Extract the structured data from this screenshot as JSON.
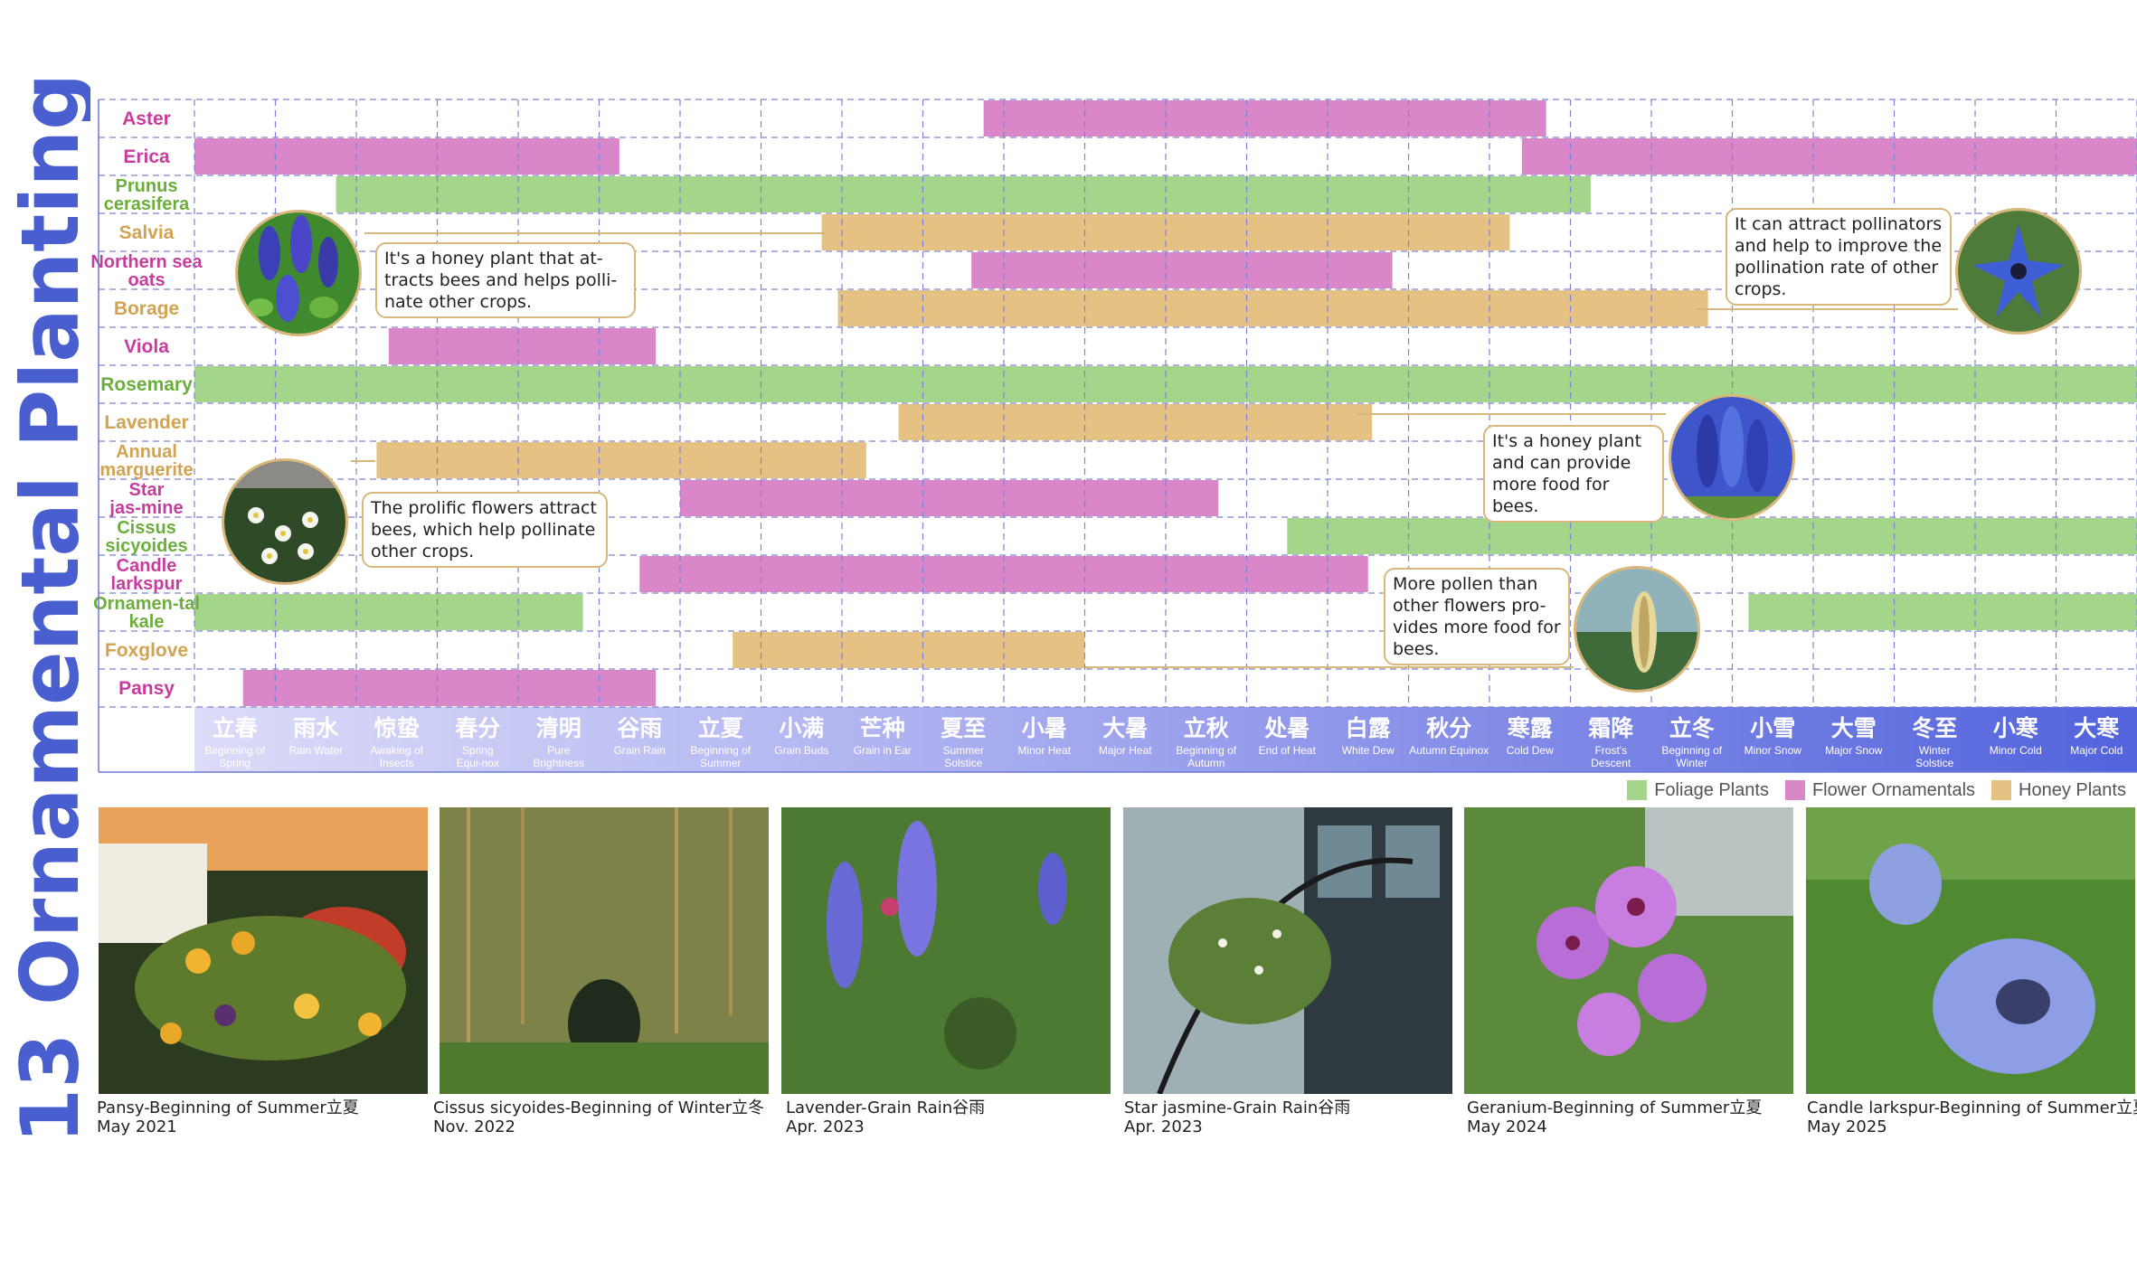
{
  "side_title": "13 Ornamental Planting",
  "chart_data": {
    "type": "gantt",
    "x_axis": {
      "categories_cn": [
        "立春",
        "雨水",
        "惊蛰",
        "春分",
        "清明",
        "谷雨",
        "立夏",
        "小满",
        "芒种",
        "夏至",
        "小暑",
        "大暑",
        "立秋",
        "处暑",
        "白露",
        "秋分",
        "寒露",
        "霜降",
        "立冬",
        "小雪",
        "大雪",
        "冬至",
        "小寒",
        "大寒"
      ],
      "categories_en": [
        "Beginning of Spring",
        "Rain Water",
        "Awaking of Insects",
        "Spring Equi-nox",
        "Pure Brightness",
        "Grain Rain",
        "Beginning of Summer",
        "Grain Buds",
        "Grain in Ear",
        "Summer Solstice",
        "Minor Heat",
        "Major Heat",
        "Beginning of Autumn",
        "End of Heat",
        "White Dew",
        "Autumn Equinox",
        "Cold Dew",
        "Frost's Descent",
        "Beginning of Winter",
        "Minor Snow",
        "Major Snow",
        "Winter Solstice",
        "Minor Cold",
        "Major Cold"
      ]
    },
    "categories": {
      "foliage": {
        "label": "Foliage Plants",
        "color": "#a3d58a",
        "text_color": "#6cae3b"
      },
      "flower": {
        "label": "Flower Ornamentals",
        "color": "#d987c9",
        "text_color": "#c63d9e"
      },
      "honey": {
        "label": "Honey Plants",
        "color": "#e5c283",
        "text_color": "#d1a352"
      }
    },
    "rows": [
      {
        "label": "Aster",
        "type": "flower",
        "segments": [
          [
            9.75,
            16.7
          ]
        ]
      },
      {
        "label": "Erica",
        "type": "flower",
        "segments": [
          [
            0,
            5.25
          ],
          [
            16.4,
            24
          ]
        ]
      },
      {
        "label": "Prunus cerasifera",
        "type": "foliage",
        "segments": [
          [
            1.75,
            17.25
          ]
        ]
      },
      {
        "label": "Salvia",
        "type": "honey",
        "segments": [
          [
            7.75,
            16.25
          ]
        ]
      },
      {
        "label": "Northern sea oats",
        "type": "flower",
        "segments": [
          [
            9.6,
            14.8
          ]
        ]
      },
      {
        "label": "Borage",
        "type": "honey",
        "segments": [
          [
            7.95,
            18.7
          ]
        ]
      },
      {
        "label": "Viola",
        "type": "flower",
        "segments": [
          [
            2.4,
            5.7
          ]
        ]
      },
      {
        "label": "Rosemary",
        "type": "foliage",
        "segments": [
          [
            0,
            24
          ]
        ]
      },
      {
        "label": "Lavender",
        "type": "honey",
        "segments": [
          [
            8.7,
            14.55
          ]
        ]
      },
      {
        "label": "Annual marguerite",
        "type": "honey",
        "segments": [
          [
            2.25,
            8.3
          ]
        ]
      },
      {
        "label": "Star jas-mine",
        "type": "flower",
        "segments": [
          [
            6.0,
            12.65
          ]
        ]
      },
      {
        "label": "Cissus sicyoides",
        "type": "foliage",
        "segments": [
          [
            13.5,
            24
          ]
        ]
      },
      {
        "label": "Candle larkspur",
        "type": "flower",
        "segments": [
          [
            5.5,
            14.5
          ]
        ]
      },
      {
        "label": "Ornamen-tal kale",
        "type": "foliage",
        "segments": [
          [
            0,
            4.8
          ],
          [
            19.2,
            24
          ]
        ]
      },
      {
        "label": "Foxglove",
        "type": "honey",
        "segments": [
          [
            6.65,
            11.0
          ]
        ]
      },
      {
        "label": "Pansy",
        "type": "flower",
        "segments": [
          [
            0.6,
            5.7
          ]
        ]
      }
    ]
  },
  "callouts": [
    {
      "text": "It's a honey plant that at-tracts bees and helps polli-nate other crops."
    },
    {
      "text": "It can attract pollinators and help to improve the pollination rate of other crops."
    },
    {
      "text": "It's a honey plant and can provide more food for bees."
    },
    {
      "text": "The prolific flowers attract bees, which help pollinate other crops."
    },
    {
      "text": "More pollen than other flowers pro-vides more food for bees."
    }
  ],
  "photos": [
    {
      "title": "Pansy-Beginning of Summer立夏",
      "date": "May 2021"
    },
    {
      "title": "Cissus sicyoides-Beginning of Winter立冬",
      "date": "Nov. 2022"
    },
    {
      "title": "Lavender-Grain Rain谷雨",
      "date": "Apr. 2023"
    },
    {
      "title": "Star jasmine-Grain Rain谷雨",
      "date": "Apr. 2023"
    },
    {
      "title": "Geranium-Beginning of Summer立夏",
      "date": "May 2024"
    },
    {
      "title": "Candle larkspur-Beginning of Summer立夏",
      "date": "May 2025"
    }
  ]
}
